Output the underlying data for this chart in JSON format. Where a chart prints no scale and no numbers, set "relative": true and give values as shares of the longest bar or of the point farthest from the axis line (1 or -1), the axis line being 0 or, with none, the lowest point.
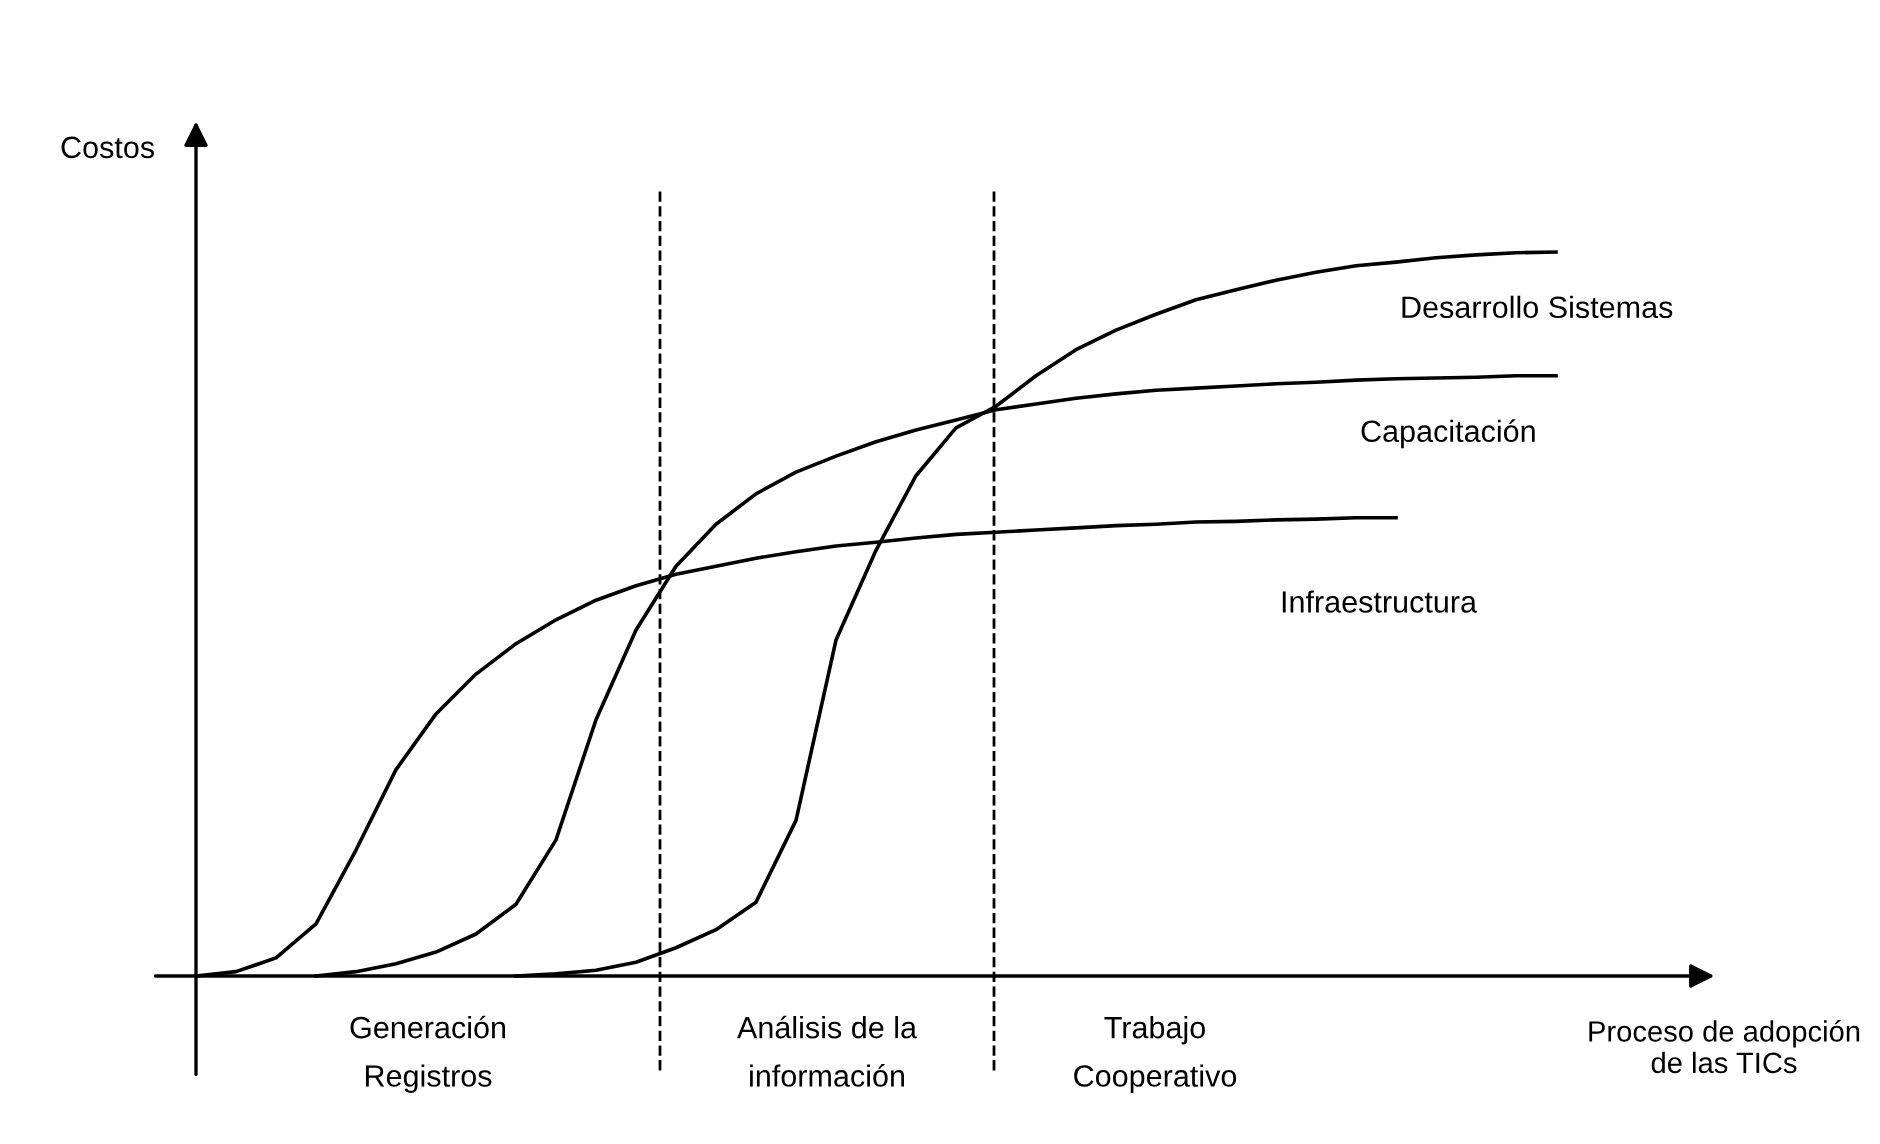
{
  "chart_data": {
    "type": "line",
    "relative": true,
    "ylabel": "Costos",
    "xlabel": "Proceso de adopción de las TICs",
    "categories": [
      null,
      null,
      null,
      null,
      null,
      null,
      null,
      null,
      null,
      null,
      null,
      null,
      null,
      null,
      null,
      null,
      null,
      null,
      null,
      null,
      null,
      null,
      null,
      null,
      null,
      null,
      null,
      null,
      null,
      null,
      null,
      null,
      null,
      null,
      null
    ],
    "series": [
      {
        "name": "Infraestructura",
        "color": "#000000",
        "values": [
          0,
          0.006,
          0.025,
          0.072,
          0.174,
          0.285,
          0.362,
          0.417,
          0.459,
          0.492,
          0.519,
          0.539,
          0.555,
          0.566,
          0.577,
          0.586,
          0.594,
          0.599,
          0.605,
          0.61,
          0.613,
          0.616,
          0.619,
          0.622,
          0.624,
          0.627,
          0.628,
          0.63,
          0.631,
          0.633,
          0.633,
          null,
          null,
          null,
          null
        ]
      },
      {
        "name": "Capacitación",
        "color": "#000000",
        "values": [
          null,
          null,
          null,
          0,
          0.006,
          0.017,
          0.033,
          0.058,
          0.099,
          0.188,
          0.354,
          0.478,
          0.566,
          0.624,
          0.666,
          0.696,
          0.718,
          0.738,
          0.754,
          0.768,
          0.782,
          0.79,
          0.798,
          0.804,
          0.809,
          0.812,
          0.815,
          0.818,
          0.82,
          0.823,
          0.825,
          0.826,
          0.827,
          0.829,
          0.829
        ]
      },
      {
        "name": "Desarrollo Sistemas",
        "color": "#000000",
        "values": [
          null,
          null,
          null,
          null,
          null,
          null,
          null,
          null,
          0,
          0.003,
          0.008,
          0.019,
          0.039,
          0.064,
          0.102,
          0.215,
          0.464,
          0.588,
          0.691,
          0.757,
          0.787,
          0.829,
          0.865,
          0.892,
          0.914,
          0.934,
          0.948,
          0.961,
          0.972,
          0.981,
          0.986,
          0.992,
          0.996,
          0.999,
          1
        ]
      }
    ],
    "annotations": [
      "Generación\nRegistros",
      "Análisis de la\ninformación",
      "Trabajo\nCooperativo"
    ],
    "legend": false,
    "marker": "none",
    "line_style": "solid"
  }
}
